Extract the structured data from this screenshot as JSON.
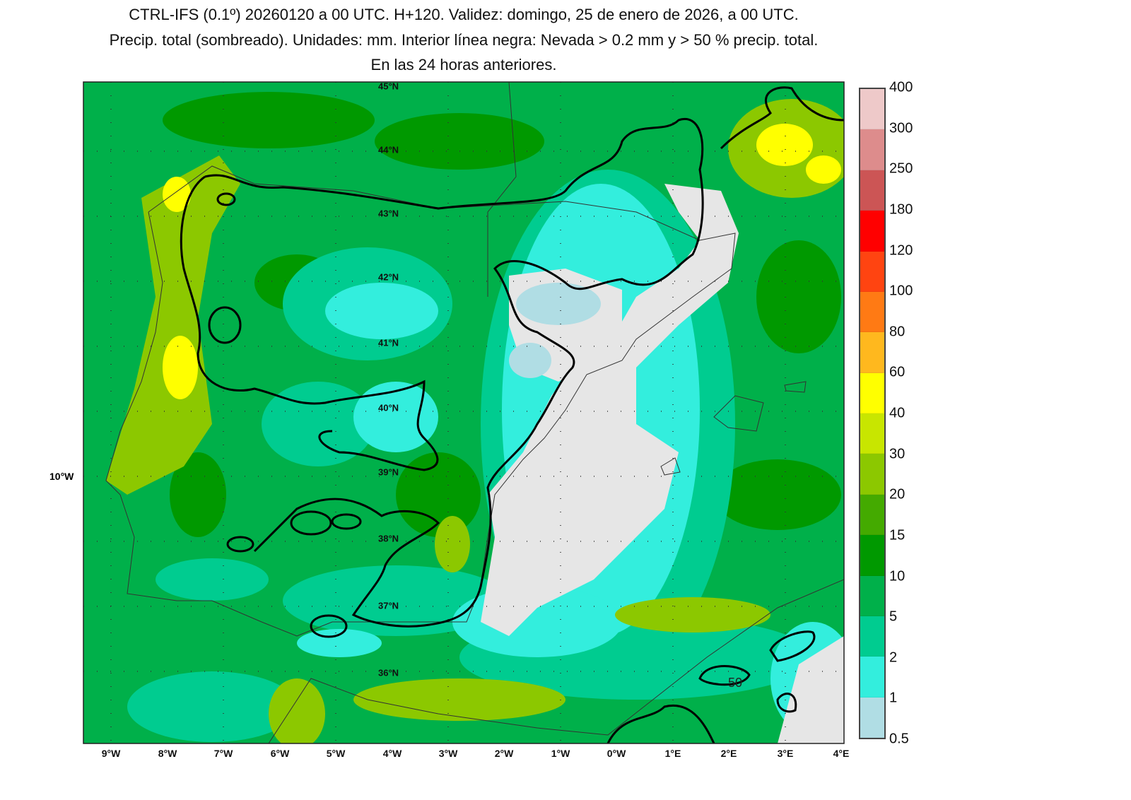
{
  "title": {
    "line1": "CTRL-IFS (0.1º) 20260120 a 00 UTC. H+120. Validez: domingo, 25 de enero de 2026, a 00 UTC.",
    "line2": "Precip. total (sombreado). Unidades: mm. Interior línea negra: Nevada > 0.2 mm y > 50 % precip. total.",
    "line3": "En las 24 horas anteriores."
  },
  "colorbar": {
    "labels": [
      "400",
      "300",
      "250",
      "180",
      "120",
      "100",
      "80",
      "60",
      "40",
      "30",
      "20",
      "15",
      "10",
      "5",
      "2",
      "1",
      "0.5"
    ],
    "colors_top_to_bottom": [
      "#eec9c9",
      "#dd8c8c",
      "#cc5555",
      "#ff0000",
      "#ff4411",
      "#ff7a14",
      "#ffb81e",
      "#ffff00",
      "#c8e600",
      "#8cc800",
      "#44aa00",
      "#009900",
      "#00b04a",
      "#00cc90",
      "#33eedd",
      "#b0dde4"
    ]
  },
  "latitudes": [
    "45°N",
    "44°N",
    "43°N",
    "42°N",
    "41°N",
    "40°N",
    "39°N",
    "38°N",
    "37°N",
    "36°N"
  ],
  "longitudes": [
    "9°W",
    "8°W",
    "7°W",
    "6°W",
    "5°W",
    "4°W",
    "3°W",
    "2°W",
    "1°W",
    "0°W",
    "1°E",
    "2°E",
    "3°E",
    "4°E"
  ],
  "left_label": "10°W",
  "contour_label": "50"
}
